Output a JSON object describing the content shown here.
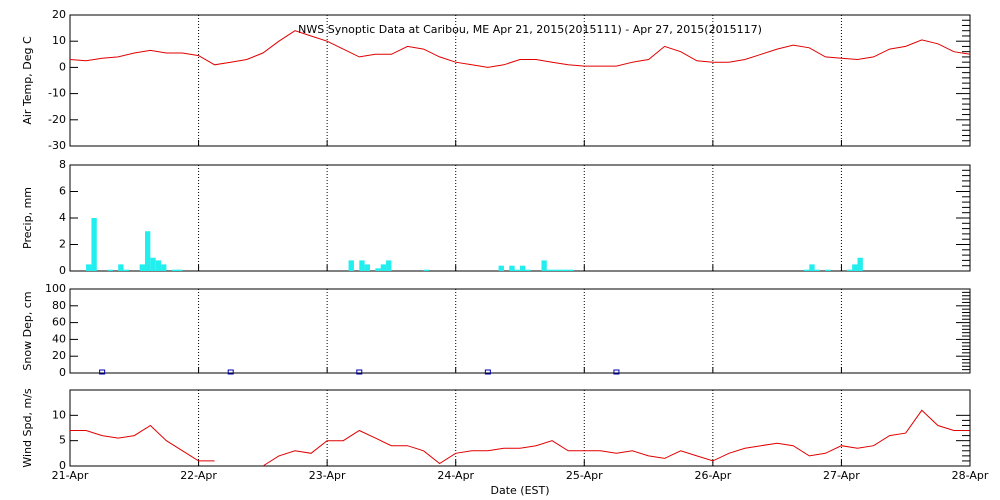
{
  "chart_data": [
    {
      "type": "line",
      "title": "NWS Synoptic Data at Caribou, ME   Apr 21, 2015(2015111) - Apr 27, 2015(2015117)",
      "y_label": "Air Temp, Deg C",
      "x": [
        0,
        3,
        6,
        9,
        12,
        15,
        18,
        21,
        24,
        27,
        30,
        33,
        36,
        39,
        42,
        45,
        48,
        51,
        54,
        57,
        60,
        63,
        66,
        69,
        72,
        75,
        78,
        81,
        84,
        87,
        90,
        93,
        96,
        99,
        102,
        105,
        108,
        111,
        114,
        117,
        120,
        123,
        126,
        129,
        132,
        135,
        138,
        141,
        144,
        147,
        150,
        153,
        156,
        159,
        162,
        165,
        168
      ],
      "series": [
        {
          "name": "Air Temp",
          "color": "#e00000",
          "values": [
            3,
            2.5,
            3.5,
            4,
            5.5,
            6.5,
            5.5,
            5.5,
            4.5,
            1,
            2,
            3,
            5.5,
            10,
            14,
            12,
            10,
            7,
            4,
            5,
            5,
            8,
            7,
            4,
            2,
            1,
            0,
            1,
            3,
            3,
            2,
            1,
            0.5,
            0.5,
            0.5,
            2,
            3,
            8,
            6,
            2.5,
            2,
            2,
            3,
            5,
            7,
            8.5,
            7.5,
            4,
            3.5,
            3,
            4,
            7,
            8,
            10.5,
            9,
            6,
            5
          ]
        }
      ],
      "xlim": [
        0,
        168
      ],
      "xticks": [
        0,
        24,
        48,
        72,
        96,
        120,
        144,
        168
      ],
      "ylim": [
        -30,
        20
      ],
      "yticks": [
        -30,
        -20,
        -10,
        0,
        10,
        20
      ],
      "grid": true
    },
    {
      "type": "bar",
      "y_label": "Precip, mm",
      "x": [
        3,
        4,
        7,
        9,
        10,
        13,
        14,
        15,
        16,
        17,
        19,
        20,
        52,
        54,
        55,
        57,
        58,
        59,
        66,
        80,
        82,
        83,
        84,
        85,
        88,
        89,
        90,
        91,
        92,
        93,
        137,
        138,
        139,
        141,
        145,
        146,
        147
      ],
      "series": [
        {
          "name": "Precip",
          "color": "#22eeee",
          "values": [
            0.5,
            4,
            0.1,
            0.5,
            0.1,
            0.5,
            3,
            1,
            0.8,
            0.5,
            0.1,
            0.1,
            0.8,
            0.8,
            0.5,
            0.2,
            0.5,
            0.8,
            0.1,
            0.4,
            0.4,
            0.1,
            0.4,
            0.1,
            0.8,
            0.1,
            0.1,
            0.1,
            0.1,
            0.1,
            0.1,
            0.5,
            0.1,
            0.1,
            0.1,
            0.5,
            1
          ]
        }
      ],
      "xlim": [
        0,
        168
      ],
      "xticks": [
        0,
        24,
        48,
        72,
        96,
        120,
        144,
        168
      ],
      "ylim": [
        0,
        8
      ],
      "yticks": [
        0,
        2,
        4,
        6,
        8
      ],
      "grid": true
    },
    {
      "type": "scatter",
      "y_label": "Snow Dep, cm",
      "x": [
        6,
        30,
        54,
        78,
        102
      ],
      "series": [
        {
          "name": "Snow Depth",
          "color": "#0000aa",
          "values": [
            0,
            0,
            0,
            0,
            0
          ]
        }
      ],
      "xlim": [
        0,
        168
      ],
      "xticks": [
        0,
        24,
        48,
        72,
        96,
        120,
        144,
        168
      ],
      "ylim": [
        0,
        100
      ],
      "yticks": [
        0,
        20,
        40,
        60,
        80,
        100
      ],
      "grid": true
    },
    {
      "type": "line",
      "y_label": "Wind Spd, m/s",
      "x_label": "Date (EST)",
      "x": [
        0,
        3,
        6,
        9,
        12,
        15,
        18,
        21,
        24,
        27,
        30,
        33,
        36,
        39,
        42,
        45,
        48,
        51,
        54,
        57,
        60,
        63,
        66,
        69,
        72,
        75,
        78,
        81,
        84,
        87,
        90,
        93,
        96,
        99,
        102,
        105,
        108,
        111,
        114,
        117,
        120,
        123,
        126,
        129,
        132,
        135,
        138,
        141,
        144,
        147,
        150,
        153,
        156,
        159,
        162,
        165,
        168
      ],
      "series": [
        {
          "name": "Wind Speed",
          "color": "#e00000",
          "values": [
            7,
            7,
            6,
            5.5,
            6,
            8,
            5,
            3,
            1,
            1,
            null,
            null,
            0,
            2,
            3,
            2.5,
            5,
            5,
            7,
            5.5,
            4,
            4,
            3,
            0.5,
            2.5,
            3,
            3,
            3.5,
            3.5,
            4,
            5,
            3,
            3,
            3,
            2.5,
            3,
            2,
            1.5,
            3,
            2,
            1,
            2.5,
            3.5,
            4,
            4.5,
            4,
            2,
            2.5,
            4,
            3.5,
            4,
            6,
            6.5,
            11,
            8,
            7,
            7
          ]
        }
      ],
      "xlim": [
        0,
        168
      ],
      "xticks": [
        {
          "value": 0,
          "label": "21-Apr"
        },
        {
          "value": 24,
          "label": "22-Apr"
        },
        {
          "value": 48,
          "label": "23-Apr"
        },
        {
          "value": 72,
          "label": "24-Apr"
        },
        {
          "value": 96,
          "label": "25-Apr"
        },
        {
          "value": 120,
          "label": "26-Apr"
        },
        {
          "value": 144,
          "label": "27-Apr"
        },
        {
          "value": 168,
          "label": "28-Apr"
        }
      ],
      "ylim": [
        0,
        15
      ],
      "yticks": [
        0,
        5,
        10
      ],
      "grid": true
    }
  ]
}
